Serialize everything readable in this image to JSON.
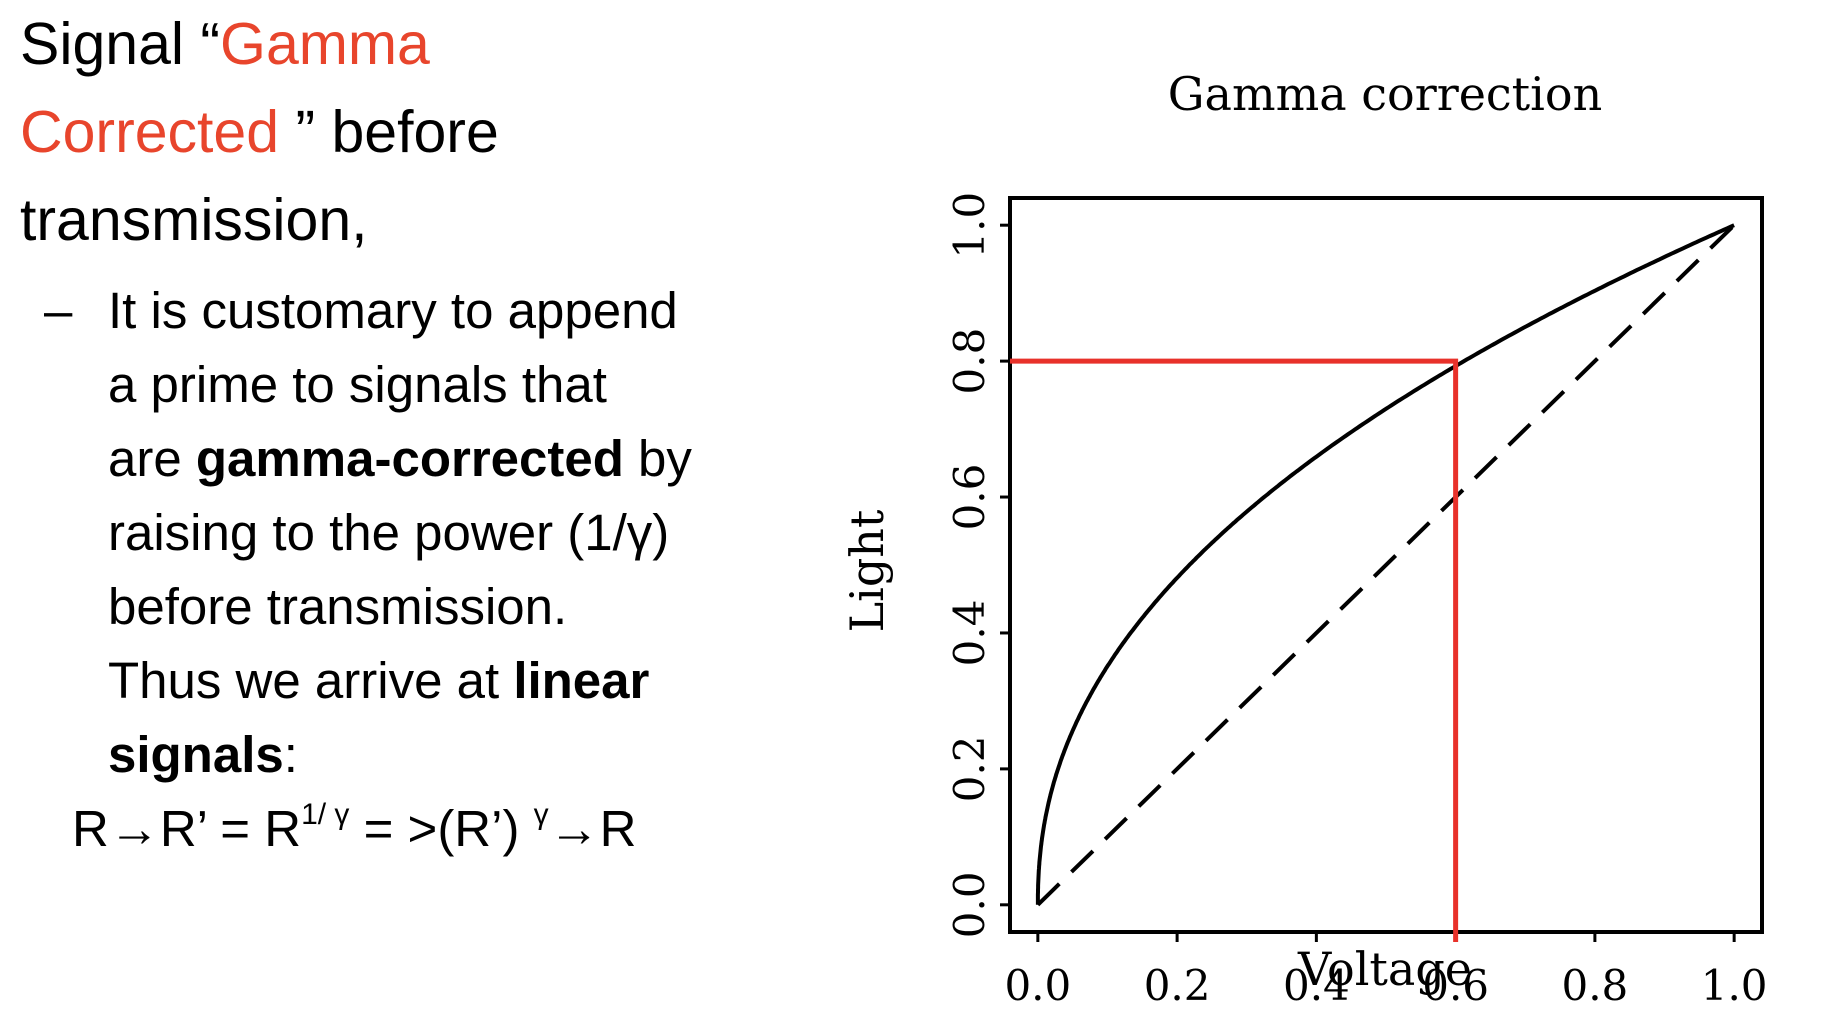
{
  "slide": {
    "heading": {
      "line1_prefix": "Signal “",
      "line1_accent": "Gamma",
      "line2_accent": "Corrected",
      "line2_suffix": " ” before",
      "line3": "transmission,"
    },
    "bullet": {
      "dash": "–",
      "l1": "It is customary to append",
      "l2": "a prime to signals that",
      "l3_pre": "are ",
      "l3_bold": "gamma-corrected",
      "l3_post": " by",
      "l4": "raising to the power (1/γ)",
      "l5": "before transmission.",
      "l6_pre": "Thus we arrive at ",
      "l6_bold": "linear",
      "l7_bold": "signals",
      "l7_post": ":"
    },
    "formula": {
      "part1": "R→R’ = R",
      "sup1": "1/ γ",
      "part2": " = >(R’) ",
      "sup2": "γ",
      "part3": "→R"
    }
  },
  "colors": {
    "accent": "#e8452c",
    "marker": "#e8312a",
    "ink": "#000000"
  },
  "chart_data": {
    "type": "line",
    "title": "Gamma correction",
    "xlabel": "Voltage",
    "ylabel": "Light",
    "xlim": [
      -0.04,
      1.04
    ],
    "ylim": [
      -0.04,
      1.04
    ],
    "x_ticks": [
      "0.0",
      "0.2",
      "0.4",
      "0.6",
      "0.8",
      "1.0"
    ],
    "y_ticks": [
      "0.0",
      "0.2",
      "0.4",
      "0.6",
      "0.8",
      "1.0"
    ],
    "grid": false,
    "legend": "none",
    "series": [
      {
        "style": "solid",
        "gamma": 2.2,
        "x": [
          0,
          0.001,
          0.005,
          0.01,
          0.02,
          0.05,
          0.1,
          0.15,
          0.2,
          0.3,
          0.4,
          0.5,
          0.6,
          0.7,
          0.8,
          0.9,
          1.0
        ],
        "y": [
          0,
          0.043,
          0.09,
          0.123,
          0.169,
          0.256,
          0.351,
          0.422,
          0.481,
          0.578,
          0.659,
          0.73,
          0.793,
          0.85,
          0.904,
          0.953,
          1.0
        ]
      },
      {
        "style": "dashed",
        "x": [
          0,
          1
        ],
        "y": [
          0,
          1
        ]
      }
    ],
    "annotation": {
      "x": 0.6,
      "y": 0.8,
      "color": "#e8312a"
    }
  }
}
